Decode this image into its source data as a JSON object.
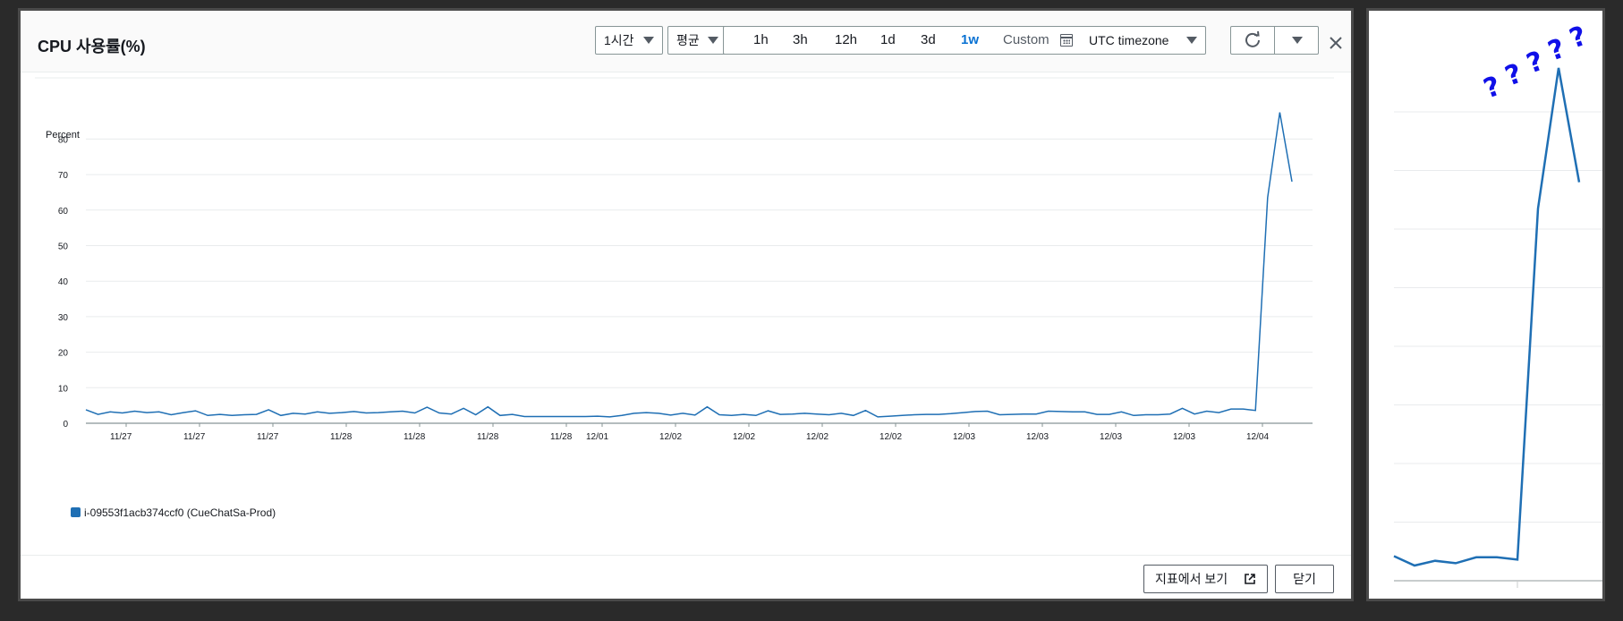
{
  "modal": {
    "title": "CPU 사용률(%)",
    "period_select": "1시간",
    "stat_select": "평균",
    "ranges": [
      "1h",
      "3h",
      "12h",
      "1d",
      "3d",
      "1w"
    ],
    "active_range": "1w",
    "custom_label": "Custom",
    "timezone": "UTC timezone",
    "refresh_icon": "refresh-icon",
    "close_icon": "close-icon"
  },
  "footer": {
    "view_in_metrics": "지표에서 보기",
    "close_button": "닫기"
  },
  "chart_data": {
    "type": "line",
    "ylabel": "Percent",
    "ylim": [
      0,
      90
    ],
    "yticks": [
      0,
      10,
      20,
      30,
      40,
      50,
      60,
      70,
      80
    ],
    "xtick_labels": [
      "11/27",
      "11/27",
      "11/27",
      "11/28",
      "11/28",
      "11/28",
      "11/28",
      "12/01",
      "12/02",
      "12/02",
      "12/02",
      "12/02",
      "12/03",
      "12/03",
      "12/03",
      "12/03",
      "12/04"
    ],
    "series": [
      {
        "name": "i-09553f1acb374ccf0 (CueChatSa-Prod)",
        "color": "#1f6fb4",
        "values": [
          3.8,
          2.5,
          3.2,
          2.9,
          3.4,
          3.0,
          3.2,
          2.4,
          3.0,
          3.5,
          2.2,
          2.5,
          2.2,
          2.4,
          2.5,
          3.8,
          2.2,
          2.8,
          2.6,
          3.2,
          2.8,
          3.0,
          3.3,
          2.9,
          3.0,
          3.2,
          3.4,
          2.9,
          4.5,
          2.9,
          2.6,
          4.2,
          2.4,
          4.6,
          2.2,
          2.5,
          1.9,
          1.9,
          1.9,
          1.9,
          1.9,
          1.9,
          2.0,
          1.8,
          2.2,
          2.8,
          3.0,
          2.8,
          2.3,
          2.8,
          2.3,
          4.6,
          2.4,
          2.2,
          2.5,
          2.2,
          3.5,
          2.5,
          2.6,
          2.8,
          2.6,
          2.4,
          2.8,
          2.2,
          3.6,
          1.8,
          2.0,
          2.2,
          2.4,
          2.5,
          2.5,
          2.7,
          3.0,
          3.3,
          3.4,
          2.4,
          2.5,
          2.6,
          2.6,
          3.4,
          3.3,
          3.2,
          3.2,
          2.5,
          2.5,
          3.2,
          2.2,
          2.4,
          2.4,
          2.6,
          4.2,
          2.6,
          3.4,
          3.0,
          4.0,
          4.0,
          3.6,
          63.5,
          87.5,
          68.0
        ]
      }
    ],
    "grid": true,
    "legend": "bottom-left",
    "annotation": "?????"
  }
}
